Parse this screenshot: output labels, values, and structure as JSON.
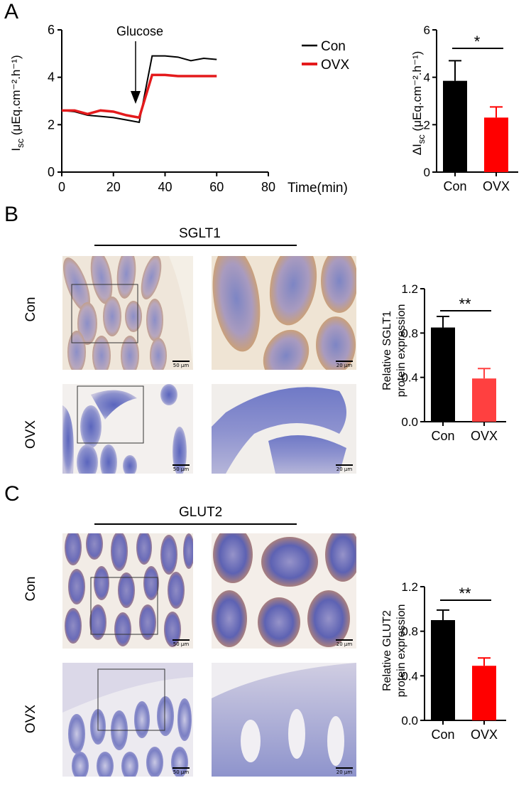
{
  "panels": {
    "A": {
      "letter": "A",
      "line_chart": {
        "ylabel_main": "I",
        "ylabel_sub": "sc",
        "ylabel_unit": " (μEq.cm⁻².h⁻¹)",
        "xlabel": "Time(min)",
        "annotation": "Glucose",
        "legend": [
          {
            "name": "Con",
            "color": "#000000"
          },
          {
            "name": "OVX",
            "color": "#e41a1c"
          }
        ]
      },
      "bar_chart": {
        "ylabel_prefix": "ΔI",
        "ylabel_sub": "sc",
        "ylabel_unit": " (μEq.cm⁻².h⁻¹)",
        "significance": "*"
      }
    },
    "B": {
      "letter": "B",
      "stain": "SGLT1",
      "rows": [
        "Con",
        "OVX"
      ],
      "scale_low": "50 μm",
      "scale_high": "20 μm",
      "bar_chart": {
        "ylabel_line1": "Relative SGLT1",
        "ylabel_line2": "protein expression",
        "significance": "**"
      }
    },
    "C": {
      "letter": "C",
      "stain": "GLUT2",
      "rows": [
        "Con",
        "OVX"
      ],
      "scale_low": "50 μm",
      "scale_high": "20 μm",
      "bar_chart": {
        "ylabel_line1": "Relative GLUT2",
        "ylabel_line2": "protein expression",
        "significance": "**"
      }
    }
  },
  "chart_data": [
    {
      "type": "line",
      "xlabel": "Time(min)",
      "ylabel": "Isc (μEq.cm-2.h-1)",
      "xlim": [
        0,
        80
      ],
      "ylim": [
        0,
        6
      ],
      "xticks": [
        0,
        20,
        40,
        60,
        80
      ],
      "yticks": [
        0,
        2,
        4,
        6
      ],
      "annotation": {
        "text": "Glucose",
        "x": 28
      },
      "series": [
        {
          "name": "Con",
          "color": "#000000",
          "x": [
            0,
            5,
            10,
            15,
            20,
            25,
            30,
            35,
            40,
            45,
            50,
            55,
            60
          ],
          "y": [
            2.6,
            2.55,
            2.4,
            2.35,
            2.3,
            2.2,
            2.1,
            4.9,
            4.9,
            4.85,
            4.7,
            4.8,
            4.75
          ]
        },
        {
          "name": "OVX",
          "color": "#e41a1c",
          "x": [
            0,
            5,
            10,
            15,
            20,
            25,
            30,
            35,
            40,
            45,
            50,
            55,
            60
          ],
          "y": [
            2.6,
            2.6,
            2.45,
            2.6,
            2.55,
            2.4,
            2.3,
            4.1,
            4.1,
            4.05,
            4.05,
            4.05,
            4.05
          ]
        }
      ],
      "grid": false
    },
    {
      "type": "bar",
      "ylabel": "ΔIsc (μEq.cm-2.h-1)",
      "categories": [
        "Con",
        "OVX"
      ],
      "values": [
        3.85,
        2.3
      ],
      "errors": [
        0.85,
        0.45
      ],
      "colors": [
        "#000000",
        "#ff0000"
      ],
      "ylim": [
        0,
        6
      ],
      "yticks": [
        0,
        2,
        4,
        6
      ],
      "significance": "*"
    },
    {
      "type": "bar",
      "ylabel": "Relative SGLT1 protein expression",
      "categories": [
        "Con",
        "OVX"
      ],
      "values": [
        0.85,
        0.39
      ],
      "errors": [
        0.1,
        0.09
      ],
      "colors": [
        "#000000",
        "#ff4040"
      ],
      "ylim": [
        0,
        1.2
      ],
      "yticks": [
        "0.0",
        "0.4",
        "0.8",
        "1.2"
      ],
      "significance": "**"
    },
    {
      "type": "bar",
      "ylabel": "Relative GLUT2 protein expression",
      "categories": [
        "Con",
        "OVX"
      ],
      "values": [
        0.9,
        0.49
      ],
      "errors": [
        0.09,
        0.07
      ],
      "colors": [
        "#000000",
        "#ff0000"
      ],
      "ylim": [
        0,
        1.2
      ],
      "yticks": [
        "0.0",
        "0.4",
        "0.8",
        "1.2"
      ],
      "significance": "**"
    }
  ]
}
